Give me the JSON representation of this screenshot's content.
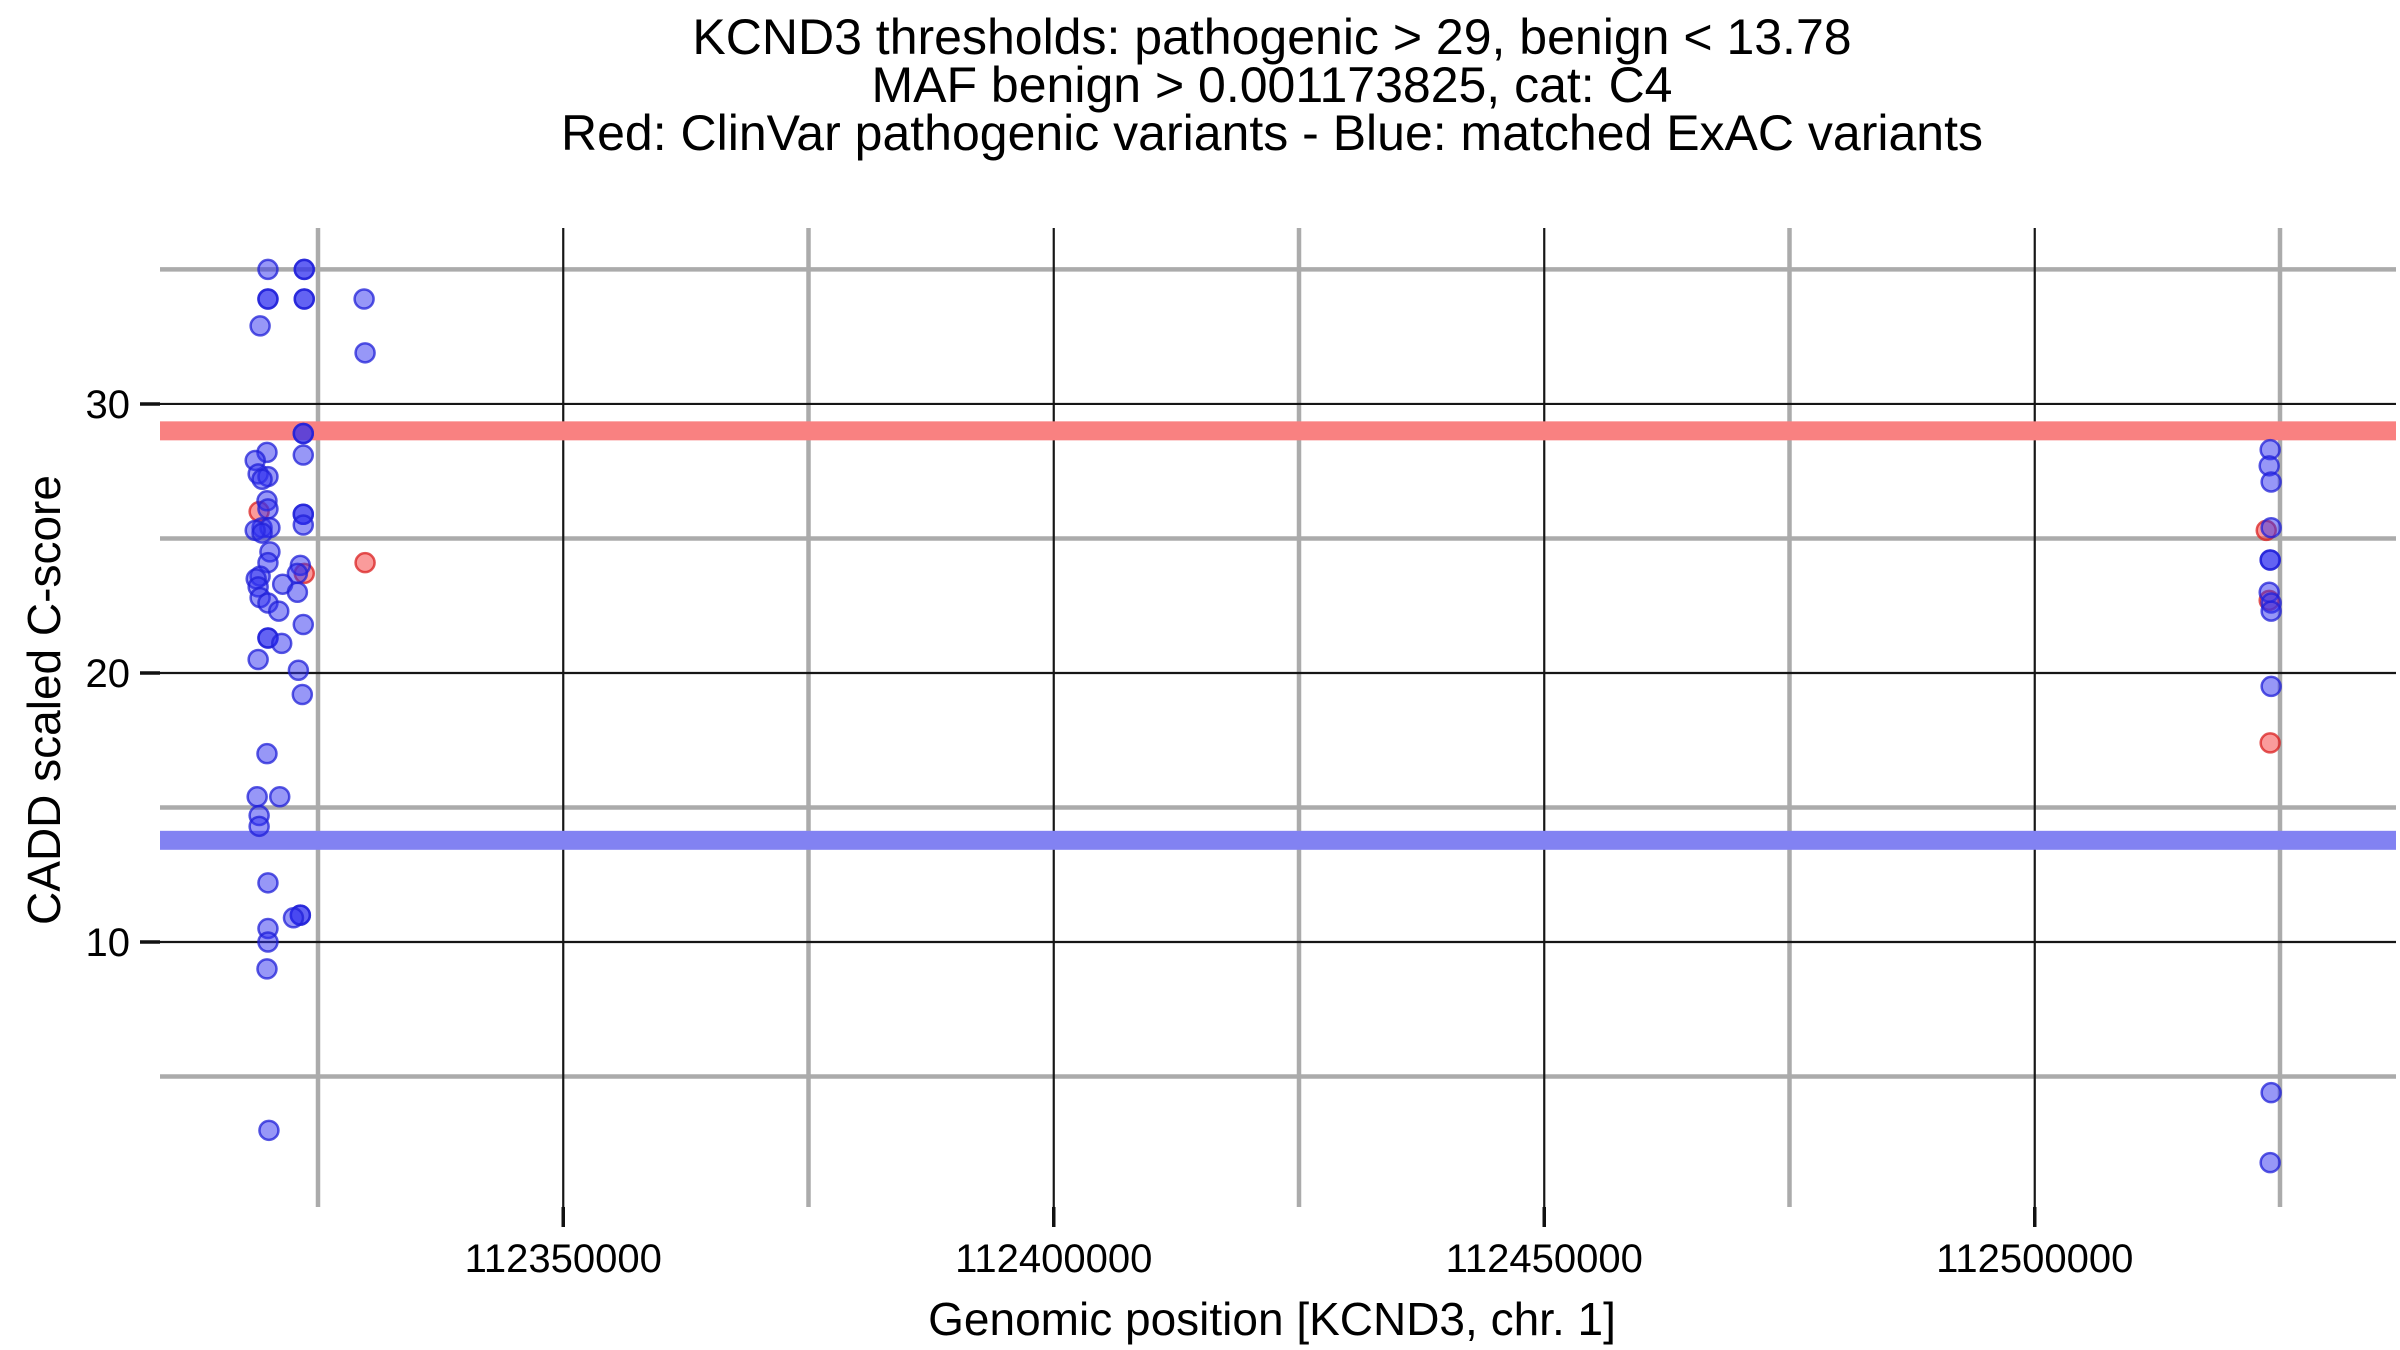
{
  "chart_data": {
    "type": "scatter",
    "title_lines": [
      "KCND3 thresholds: pathogenic > 29, benign < 13.78",
      "MAF benign > 0.001173825, cat: C4",
      "Red: ClinVar pathogenic variants - Blue: matched ExAC variants"
    ],
    "xlabel": "Genomic position [KCND3, chr. 1]",
    "ylabel": "CADD scaled C-score",
    "x_ticks": [
      112350000,
      112400000,
      112450000,
      112500000
    ],
    "x_tick_labels": [
      "112350000",
      "112400000",
      "112450000",
      "112500000"
    ],
    "y_ticks": [
      10,
      20,
      30
    ],
    "y_tick_labels": [
      "10",
      "20",
      "30"
    ],
    "x_minor_gridlines": [
      112325000,
      112375000,
      112425000,
      112475000,
      112525000
    ],
    "y_minor_gridlines": [
      5,
      15,
      25,
      35
    ],
    "x_domain": [
      112308894,
      112536825
    ],
    "y_domain": [
      0.15,
      36.54
    ],
    "grid": "on",
    "legend_position": "none (described in title line 3)",
    "thresholds": {
      "pathogenic_cadd": 29,
      "benign_cadd": 13.78,
      "maf_benign": 0.001173825,
      "category": "C4",
      "band_half_height_units": 0.353
    },
    "colors": {
      "pathogenic_band": "#f98181",
      "benign_band": "#8282f2",
      "red_point_fill": "#f53838",
      "red_point_stroke": "#d92020",
      "blue_point_fill": "#3030f0",
      "blue_point_stroke": "#2020d8",
      "grid_minor": "#ababab",
      "grid_major": "#161616",
      "tick": "#111111",
      "text": "#000000"
    },
    "series": [
      {
        "name": "ClinVar pathogenic variants",
        "color": "red",
        "points": [
          [
            112319000,
            26.0
          ],
          [
            112323600,
            23.7
          ],
          [
            112329800,
            24.1
          ],
          [
            112523600,
            25.3
          ],
          [
            112523900,
            22.7
          ],
          [
            112524000,
            17.4
          ]
        ]
      },
      {
        "name": "matched ExAC variants",
        "color": "blue",
        "points": [
          [
            112319900,
            35.0
          ],
          [
            112323600,
            35.0,
            2
          ],
          [
            112319900,
            33.9,
            2
          ],
          [
            112323600,
            33.9,
            2
          ],
          [
            112329700,
            33.9
          ],
          [
            112319100,
            32.9
          ],
          [
            112329800,
            31.9
          ],
          [
            112323500,
            28.9,
            2
          ],
          [
            112323500,
            28.1
          ],
          [
            112319800,
            28.2
          ],
          [
            112318600,
            27.9
          ],
          [
            112318900,
            27.4
          ],
          [
            112319900,
            27.3
          ],
          [
            112319300,
            27.2
          ],
          [
            112319800,
            26.4
          ],
          [
            112319900,
            26.1
          ],
          [
            112323500,
            25.9,
            2
          ],
          [
            112323500,
            25.5
          ],
          [
            112319300,
            25.4
          ],
          [
            112320100,
            25.4
          ],
          [
            112318600,
            25.3
          ],
          [
            112319300,
            25.2
          ],
          [
            112320100,
            24.5
          ],
          [
            112319900,
            24.1
          ],
          [
            112323200,
            24.0
          ],
          [
            112322900,
            23.7
          ],
          [
            112319100,
            23.6
          ],
          [
            112318700,
            23.5
          ],
          [
            112321400,
            23.3
          ],
          [
            112318900,
            23.2
          ],
          [
            112322900,
            23.0
          ],
          [
            112319100,
            22.8
          ],
          [
            112319900,
            22.6
          ],
          [
            112321000,
            22.3
          ],
          [
            112323500,
            21.8
          ],
          [
            112319900,
            21.3,
            2
          ],
          [
            112321300,
            21.1
          ],
          [
            112318900,
            20.5
          ],
          [
            112323000,
            20.1
          ],
          [
            112323400,
            19.2
          ],
          [
            112319800,
            17.0
          ],
          [
            112318800,
            15.4
          ],
          [
            112321100,
            15.4
          ],
          [
            112319000,
            14.7
          ],
          [
            112319000,
            14.3
          ],
          [
            112319900,
            12.2
          ],
          [
            112323200,
            11.0,
            2
          ],
          [
            112322500,
            10.9
          ],
          [
            112319900,
            10.5
          ],
          [
            112319900,
            10.0
          ],
          [
            112319800,
            9.0
          ],
          [
            112320000,
            3.0
          ],
          [
            112524000,
            28.3
          ],
          [
            112523900,
            27.7
          ],
          [
            112524100,
            27.1
          ],
          [
            112524100,
            25.4
          ],
          [
            112524000,
            24.2,
            2
          ],
          [
            112523900,
            23.0
          ],
          [
            112524100,
            22.6
          ],
          [
            112524100,
            22.3
          ],
          [
            112524100,
            19.5
          ],
          [
            112524100,
            4.4
          ],
          [
            112524000,
            1.8
          ]
        ]
      }
    ]
  }
}
